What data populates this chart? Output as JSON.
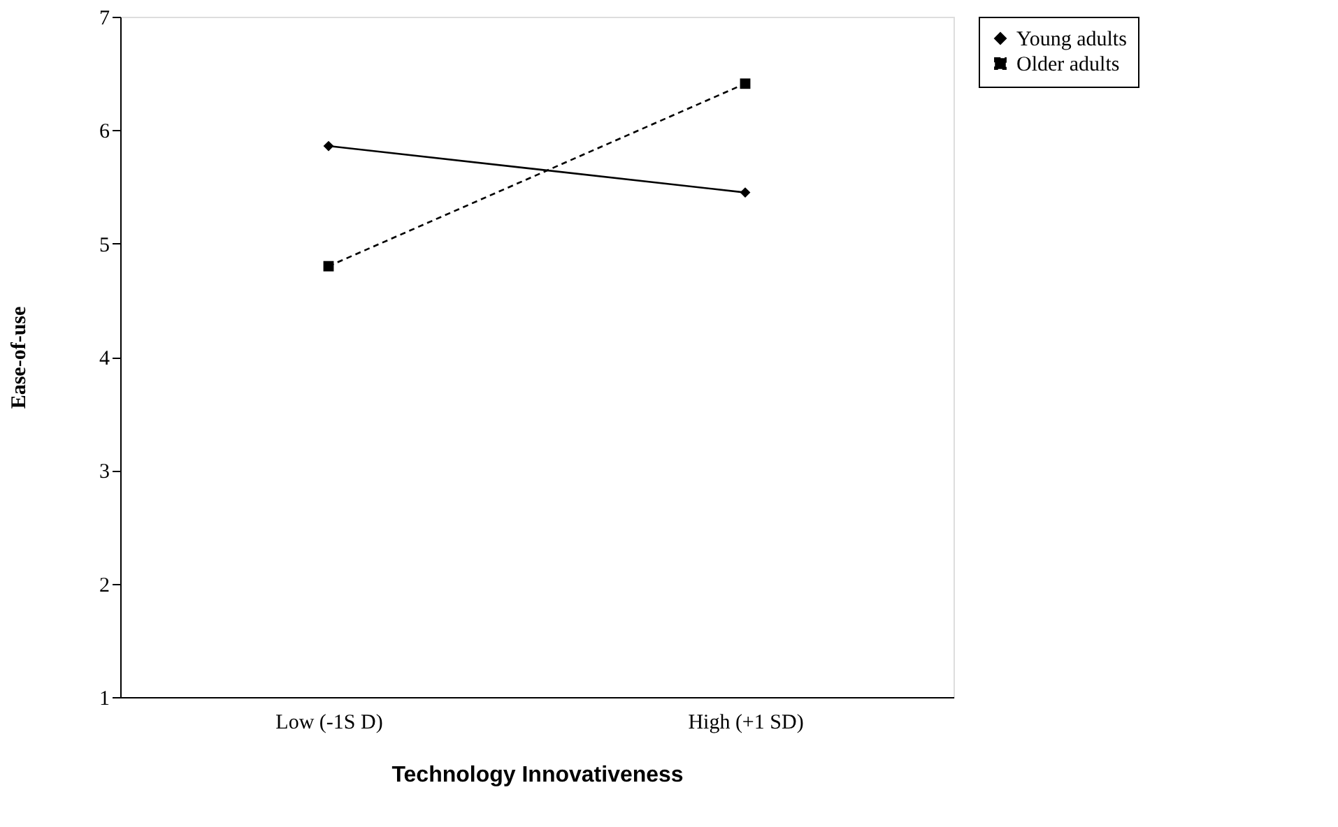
{
  "chart_data": {
    "type": "line",
    "xlabel": "Technology Innovativeness",
    "ylabel": "Ease-of-use",
    "categories": [
      "Low (-1S D)",
      "High (+1 SD)"
    ],
    "series": [
      {
        "name": "Young adults",
        "color": "#000000",
        "values": [
          5.86,
          5.45
        ],
        "marker": "diamond",
        "line_style": "solid"
      },
      {
        "name": "Older adults",
        "color": "#000000",
        "values": [
          4.8,
          6.41
        ],
        "marker": "square",
        "line_style": "dashed"
      }
    ],
    "ylim": [
      1,
      7
    ],
    "yticks": [
      1,
      2,
      3,
      4,
      5,
      6,
      7
    ],
    "grid": false,
    "legend": "right"
  }
}
